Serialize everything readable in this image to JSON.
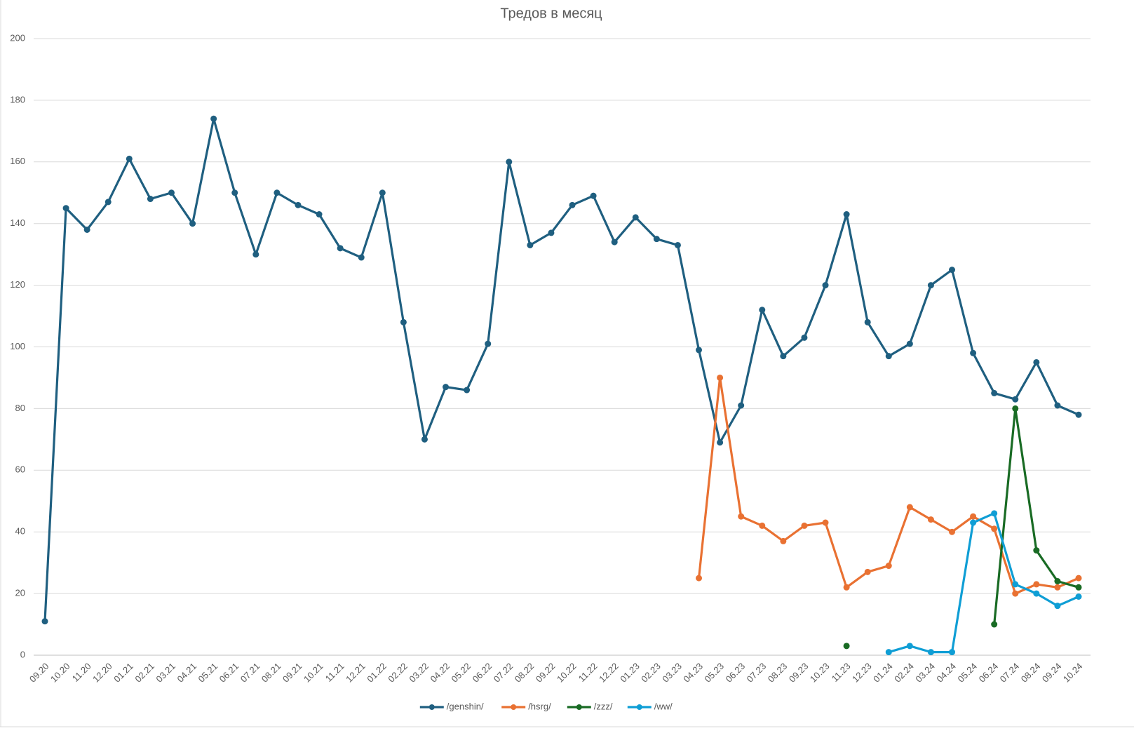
{
  "chart_data": {
    "type": "line",
    "title": "Тредов в месяц",
    "categories": [
      "09.20",
      "10.20",
      "11.20",
      "12.20",
      "01.21",
      "02.21",
      "03.21",
      "04.21",
      "05.21",
      "06.21",
      "07.21",
      "08.21",
      "09.21",
      "10.21",
      "11.21",
      "12.21",
      "01.22",
      "02.22",
      "03.22",
      "04.22",
      "05.22",
      "06.22",
      "07.22",
      "08.22",
      "09.22",
      "10.22",
      "11.22",
      "12.22",
      "01.23",
      "02.23",
      "03.23",
      "04.23",
      "05.23",
      "06.23",
      "07.23",
      "08.23",
      "09.23",
      "10.23",
      "11.23",
      "12.23",
      "01.24",
      "02.24",
      "03.24",
      "04.24",
      "05.24",
      "06.24",
      "07.24",
      "08.24",
      "09.24",
      "10.24"
    ],
    "series": [
      {
        "name": "/genshin/",
        "color": "#1f5f80",
        "values": [
          11,
          145,
          138,
          147,
          161,
          148,
          150,
          140,
          174,
          150,
          130,
          150,
          146,
          143,
          132,
          129,
          150,
          108,
          70,
          87,
          86,
          101,
          160,
          133,
          137,
          146,
          149,
          134,
          142,
          135,
          133,
          99,
          69,
          81,
          112,
          97,
          103,
          120,
          143,
          108,
          97,
          101,
          120,
          125,
          98,
          85,
          83,
          95,
          81,
          78
        ]
      },
      {
        "name": "/hsrg/",
        "color": "#e97132",
        "values": [
          null,
          null,
          null,
          null,
          null,
          null,
          null,
          null,
          null,
          null,
          null,
          null,
          null,
          null,
          null,
          null,
          null,
          null,
          null,
          null,
          null,
          null,
          null,
          null,
          null,
          null,
          null,
          null,
          null,
          null,
          null,
          25,
          90,
          45,
          42,
          37,
          42,
          43,
          22,
          27,
          29,
          48,
          44,
          40,
          45,
          41,
          20,
          23,
          22,
          25
        ]
      },
      {
        "name": "/zzz/",
        "color": "#196b24",
        "values": [
          null,
          null,
          null,
          null,
          null,
          null,
          null,
          null,
          null,
          null,
          null,
          null,
          null,
          null,
          null,
          null,
          null,
          null,
          null,
          null,
          null,
          null,
          null,
          null,
          null,
          null,
          null,
          null,
          null,
          null,
          null,
          null,
          null,
          null,
          null,
          null,
          null,
          null,
          3,
          null,
          null,
          null,
          null,
          null,
          null,
          10,
          80,
          34,
          24,
          22
        ]
      },
      {
        "name": "/ww/",
        "color": "#0f9ed5",
        "values": [
          null,
          null,
          null,
          null,
          null,
          null,
          null,
          null,
          null,
          null,
          null,
          null,
          null,
          null,
          null,
          null,
          null,
          null,
          null,
          null,
          null,
          null,
          null,
          null,
          null,
          null,
          null,
          null,
          null,
          null,
          null,
          null,
          null,
          null,
          null,
          null,
          null,
          null,
          null,
          null,
          1,
          3,
          1,
          1,
          43,
          46,
          23,
          20,
          16,
          19
        ]
      }
    ],
    "ylim": [
      0,
      200
    ],
    "yticks": [
      0,
      20,
      40,
      60,
      80,
      100,
      120,
      140,
      160,
      180,
      200
    ],
    "grid": true,
    "legend": "bottom"
  }
}
